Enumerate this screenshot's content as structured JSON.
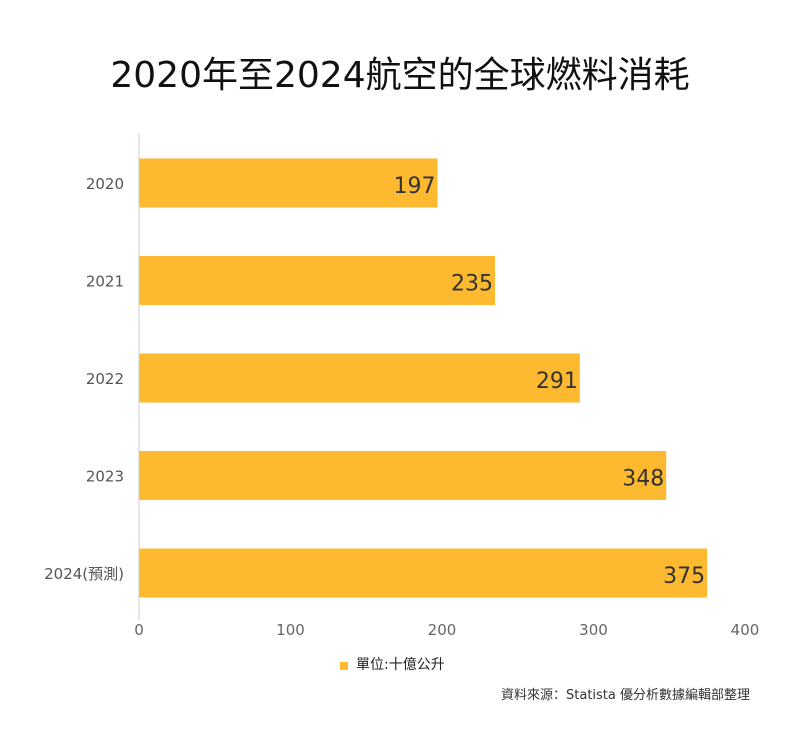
{
  "chart_data": {
    "type": "bar",
    "orientation": "horizontal",
    "title": "2020年至2024航空的全球燃料消耗",
    "categories": [
      "2020",
      "2021",
      "2022",
      "2023",
      "2024(預測)"
    ],
    "values": [
      197,
      235,
      291,
      348,
      375
    ],
    "xlim": [
      0,
      400
    ],
    "x_ticks": [
      "0",
      "100",
      "200",
      "300",
      "400"
    ],
    "legend": "單位:十億公升",
    "legend_position": "bottom",
    "grid": false,
    "bar_color": "#FDBA30",
    "source": "資料來源：Statista 優分析數據編輯部整理"
  }
}
